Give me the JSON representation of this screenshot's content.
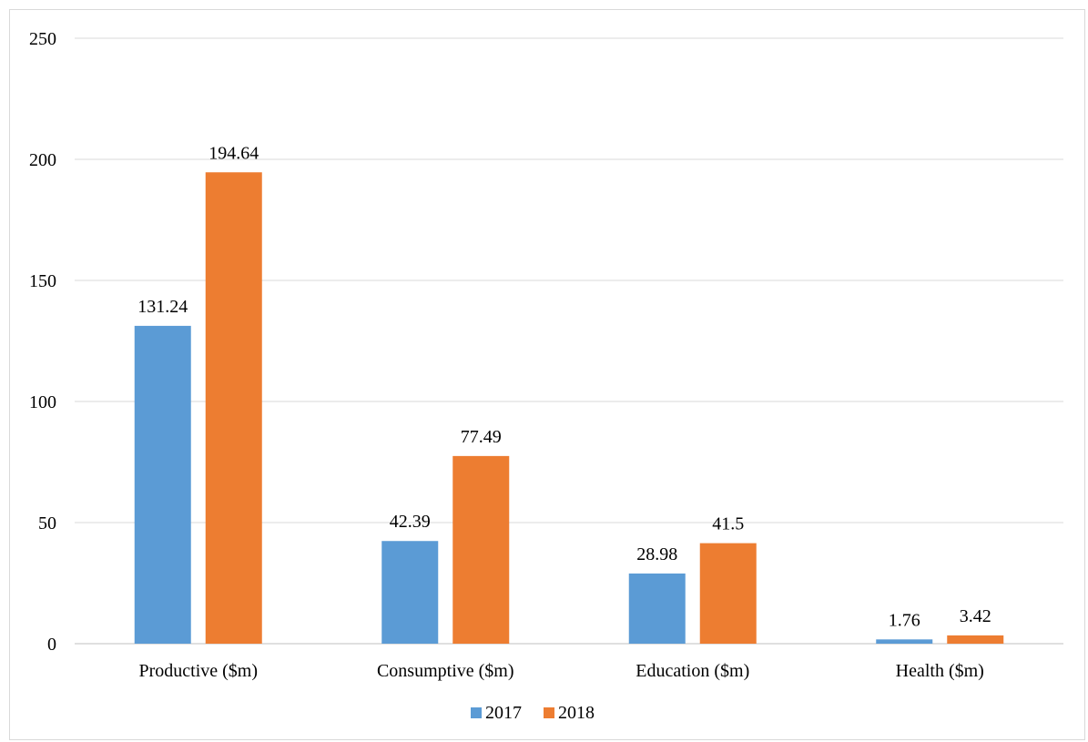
{
  "chart_data": {
    "type": "bar",
    "categories": [
      "Productive ($m)",
      "Consumptive ($m)",
      "Education ($m)",
      "Health ($m)"
    ],
    "series": [
      {
        "name": "2017",
        "values": [
          131.24,
          42.39,
          28.98,
          1.76
        ],
        "color": "#5b9bd5"
      },
      {
        "name": "2018",
        "values": [
          194.64,
          77.49,
          41.5,
          3.42
        ],
        "color": "#ed7d31"
      }
    ],
    "title": "",
    "xlabel": "",
    "ylabel": "",
    "ylim": [
      0,
      250
    ],
    "yticks": [
      0,
      50,
      100,
      150,
      200,
      250
    ],
    "grid": true,
    "legend": "bottom",
    "gridline_color": "#d9d9d9",
    "axis_color": "#bfbfbf"
  }
}
